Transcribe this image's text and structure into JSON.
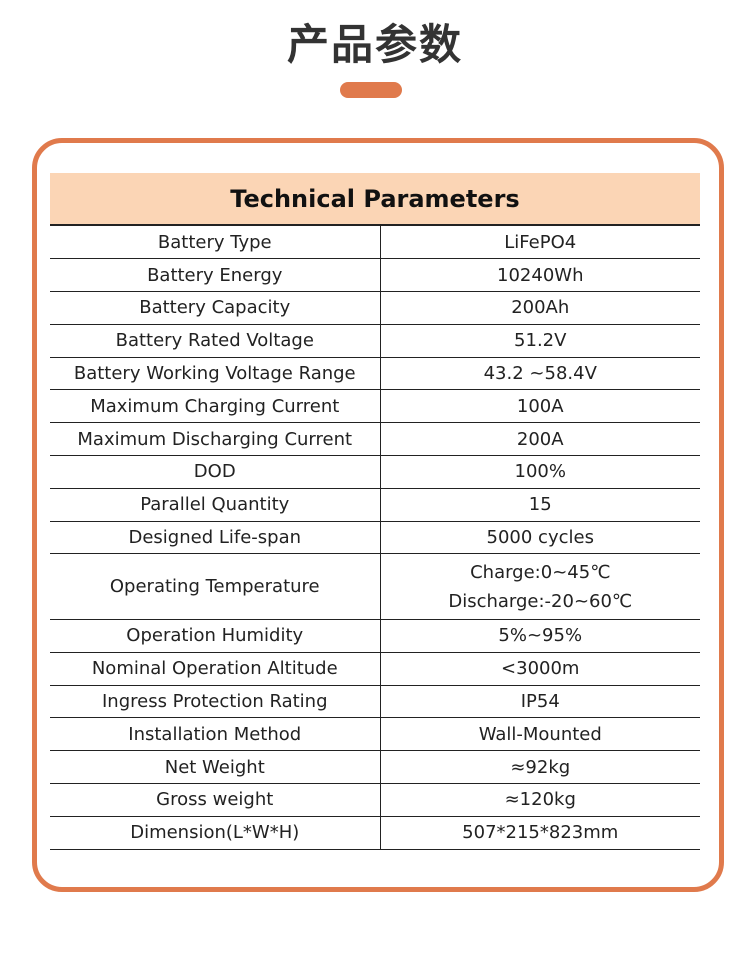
{
  "header": {
    "title": "产品参数"
  },
  "table": {
    "heading": "Technical Parameters",
    "rows": [
      {
        "label": "Battery Type",
        "value": "LiFePO4"
      },
      {
        "label": "Battery Energy",
        "value": "10240Wh"
      },
      {
        "label": "Battery Capacity",
        "value": "200Ah"
      },
      {
        "label": "Battery Rated Voltage",
        "value": "51.2V"
      },
      {
        "label": "Battery Working Voltage Range",
        "value": "43.2 ~58.4V"
      },
      {
        "label": "Maximum Charging Current",
        "value": "100A"
      },
      {
        "label": "Maximum Discharging Current",
        "value": "200A"
      },
      {
        "label": "DOD",
        "value": "100%"
      },
      {
        "label": "Parallel Quantity",
        "value": "15"
      },
      {
        "label": "Designed Life-span",
        "value": "5000 cycles"
      },
      {
        "label": "Operating Temperature",
        "value": "Charge:0~45℃",
        "value2": "Discharge:-20~60℃"
      },
      {
        "label": "Operation Humidity",
        "value": "5%~95%"
      },
      {
        "label": "Nominal Operation Altitude",
        "value": "<3000m"
      },
      {
        "label": "Ingress Protection Rating",
        "value": "IP54"
      },
      {
        "label": "Installation Method",
        "value": "Wall-Mounted"
      },
      {
        "label": "Net Weight",
        "value": "≈92kg"
      },
      {
        "label": "Gross weight",
        "value": "≈120kg"
      },
      {
        "label": "Dimension(L*W*H)",
        "value": "507*215*823mm"
      }
    ]
  },
  "colors": {
    "accent": "#e07a4c",
    "header_fill": "#fbd5b5",
    "text": "#222222",
    "title_text": "#333333"
  }
}
